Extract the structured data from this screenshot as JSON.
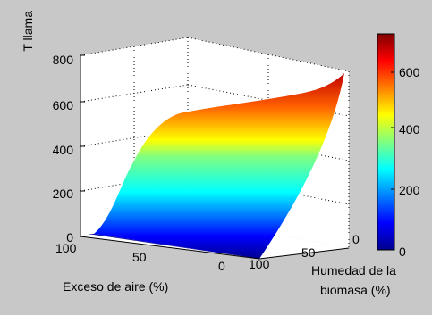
{
  "chart_data": {
    "type": "surface",
    "zlabel": "T llama",
    "xlabel": "Exceso de aire (%)",
    "ylabel": [
      "Humedad de la",
      "biomasa (%)"
    ],
    "x_ticks": [
      100,
      50,
      0
    ],
    "y_ticks": [
      0,
      50,
      100
    ],
    "z_ticks": [
      0,
      200,
      400,
      600,
      800
    ],
    "x_range": [
      0,
      100
    ],
    "y_range": [
      0,
      100
    ],
    "z_range": [
      0,
      800
    ],
    "colorbar": {
      "ticks": [
        0,
        200,
        400,
        600
      ],
      "range": [
        0,
        700
      ],
      "colormap": "jet"
    },
    "grid": true,
    "surface_samples": {
      "x": [
        0,
        25,
        50,
        75,
        100
      ],
      "y": [
        0,
        25,
        50,
        75,
        100
      ],
      "z_rows": [
        [
          700,
          600,
          520,
          470,
          430
        ],
        [
          560,
          480,
          420,
          380,
          350
        ],
        [
          420,
          360,
          310,
          280,
          260
        ],
        [
          260,
          220,
          190,
          170,
          150
        ],
        [
          0,
          0,
          0,
          0,
          0
        ]
      ]
    }
  }
}
